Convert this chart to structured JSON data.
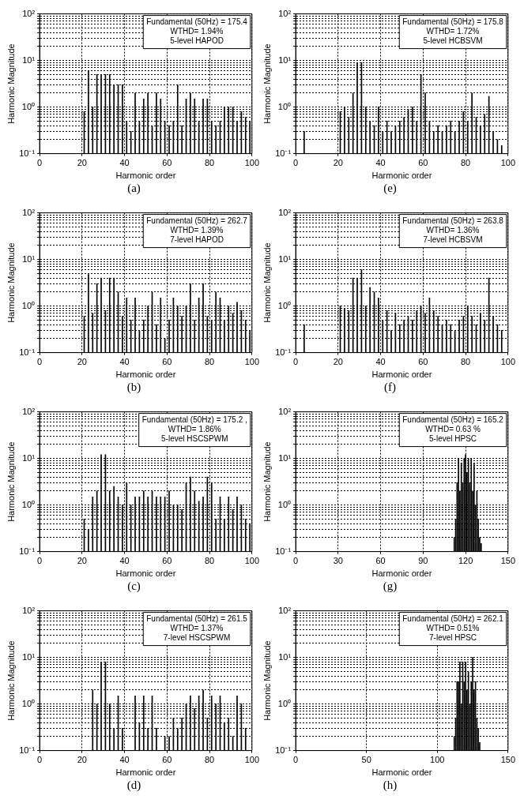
{
  "chart_data": [
    {
      "type": "bar",
      "title": "(a)",
      "xlabel": "Harmonic order",
      "ylabel": "Harmonic Magnitude",
      "annotations": [
        "Fundamental (50Hz) = 175.4",
        "WTHD= 1.94%",
        "5-level HAPOD"
      ],
      "color": "#000000",
      "log": "y",
      "grid": true,
      "xlim": [
        0,
        100
      ],
      "xticks": [
        0,
        20,
        40,
        60,
        80,
        100
      ],
      "ylim": [
        0.1,
        100
      ],
      "yticks": [
        {
          "value": 0.1,
          "label": "10⁻¹"
        },
        {
          "value": 0.2,
          "label": null
        },
        {
          "value": 0.3,
          "label": null
        },
        {
          "value": 0.4,
          "label": null
        },
        {
          "value": 0.5,
          "label": null
        },
        {
          "value": 0.6,
          "label": null
        },
        {
          "value": 0.7,
          "label": null
        },
        {
          "value": 0.8,
          "label": null
        },
        {
          "value": 0.9,
          "label": null
        },
        {
          "value": 1,
          "label": "10⁰"
        },
        {
          "value": 2,
          "label": null
        },
        {
          "value": 3,
          "label": null
        },
        {
          "value": 4,
          "label": null
        },
        {
          "value": 5,
          "label": null
        },
        {
          "value": 6,
          "label": null
        },
        {
          "value": 7,
          "label": null
        },
        {
          "value": 8,
          "label": null
        },
        {
          "value": 9,
          "label": null
        },
        {
          "value": 10,
          "label": "10¹"
        },
        {
          "value": 20,
          "label": null
        },
        {
          "value": 30,
          "label": null
        },
        {
          "value": 40,
          "label": null
        },
        {
          "value": 50,
          "label": null
        },
        {
          "value": 60,
          "label": null
        },
        {
          "value": 70,
          "label": null
        },
        {
          "value": 80,
          "label": null
        },
        {
          "value": 90,
          "label": null
        },
        {
          "value": 100,
          "label": "10²"
        }
      ],
      "x": [
        21,
        23,
        25,
        27,
        29,
        31,
        33,
        35,
        37,
        39,
        41,
        43,
        45,
        47,
        49,
        51,
        53,
        55,
        57,
        59,
        61,
        63,
        65,
        67,
        69,
        71,
        73,
        75,
        77,
        79,
        81,
        83,
        85,
        87,
        89,
        91,
        93,
        95,
        97,
        99
      ],
      "values": [
        0.8,
        6,
        1,
        5,
        5,
        5,
        5,
        3,
        3,
        3,
        0.5,
        0.3,
        2,
        0.5,
        1.5,
        2,
        0.4,
        2,
        1.5,
        0.5,
        0.4,
        0.5,
        3,
        0.4,
        1.5,
        2,
        1.5,
        0.5,
        1.5,
        1.5,
        0.5,
        0.4,
        0.5,
        1,
        1,
        1,
        0.5,
        0.8,
        0.6,
        0.5
      ]
    },
    {
      "type": "bar",
      "title": "(e)",
      "xlabel": "Harmonic order",
      "ylabel": "Harmonic Magnitude",
      "annotations": [
        "Fundamental (50Hz) = 175.8",
        "WTHD= 1.72%",
        "5-level HCBSVM"
      ],
      "color": "#000000",
      "log": "y",
      "grid": true,
      "xlim": [
        0,
        100
      ],
      "xticks": [
        0,
        20,
        40,
        60,
        80,
        100
      ],
      "ylim": [
        0.1,
        100
      ],
      "yticks": [
        {
          "value": 0.1,
          "label": "10⁻¹"
        },
        {
          "value": 0.2,
          "label": null
        },
        {
          "value": 0.3,
          "label": null
        },
        {
          "value": 0.4,
          "label": null
        },
        {
          "value": 0.5,
          "label": null
        },
        {
          "value": 0.6,
          "label": null
        },
        {
          "value": 0.7,
          "label": null
        },
        {
          "value": 0.8,
          "label": null
        },
        {
          "value": 0.9,
          "label": null
        },
        {
          "value": 1,
          "label": "10⁰"
        },
        {
          "value": 2,
          "label": null
        },
        {
          "value": 3,
          "label": null
        },
        {
          "value": 4,
          "label": null
        },
        {
          "value": 5,
          "label": null
        },
        {
          "value": 6,
          "label": null
        },
        {
          "value": 7,
          "label": null
        },
        {
          "value": 8,
          "label": null
        },
        {
          "value": 9,
          "label": null
        },
        {
          "value": 10,
          "label": "10¹"
        },
        {
          "value": 20,
          "label": null
        },
        {
          "value": 30,
          "label": null
        },
        {
          "value": 40,
          "label": null
        },
        {
          "value": 50,
          "label": null
        },
        {
          "value": 60,
          "label": null
        },
        {
          "value": 70,
          "label": null
        },
        {
          "value": 80,
          "label": null
        },
        {
          "value": 90,
          "label": null
        },
        {
          "value": 100,
          "label": "10²"
        }
      ],
      "x": [
        4,
        21,
        23,
        25,
        27,
        29,
        31,
        33,
        35,
        37,
        39,
        41,
        43,
        45,
        47,
        49,
        51,
        53,
        55,
        57,
        59,
        61,
        63,
        65,
        67,
        69,
        71,
        73,
        75,
        77,
        79,
        81,
        83,
        85,
        87,
        89,
        91,
        93,
        95,
        97
      ],
      "values": [
        0.3,
        0.8,
        1,
        0.6,
        2,
        9,
        9,
        1,
        0.5,
        0.4,
        1,
        0.3,
        0.5,
        0.3,
        0.4,
        0.5,
        0.6,
        0.9,
        1,
        0.5,
        5,
        2,
        0.5,
        0.3,
        0.4,
        0.3,
        0.4,
        0.5,
        0.3,
        0.5,
        0.8,
        0.5,
        2,
        0.6,
        0.4,
        0.7,
        1.7,
        0.3,
        0.2,
        0.15
      ]
    },
    {
      "type": "bar",
      "title": "(b)",
      "xlabel": "Harmonic order",
      "ylabel": "Harmonic Magnitude",
      "annotations": [
        "Fundamental (50Hz) = 262.7",
        "WTHD= 1.39%",
        "7-level HAPOD"
      ],
      "color": "#000000",
      "log": "y",
      "grid": true,
      "xlim": [
        0,
        100
      ],
      "xticks": [
        0,
        20,
        40,
        60,
        80,
        100
      ],
      "ylim": [
        0.1,
        100
      ],
      "yticks": [
        {
          "value": 0.1,
          "label": "10⁻¹"
        },
        {
          "value": 0.2,
          "label": null
        },
        {
          "value": 0.3,
          "label": null
        },
        {
          "value": 0.4,
          "label": null
        },
        {
          "value": 0.5,
          "label": null
        },
        {
          "value": 0.6,
          "label": null
        },
        {
          "value": 0.7,
          "label": null
        },
        {
          "value": 0.8,
          "label": null
        },
        {
          "value": 0.9,
          "label": null
        },
        {
          "value": 1,
          "label": "10⁰"
        },
        {
          "value": 2,
          "label": null
        },
        {
          "value": 3,
          "label": null
        },
        {
          "value": 4,
          "label": null
        },
        {
          "value": 5,
          "label": null
        },
        {
          "value": 6,
          "label": null
        },
        {
          "value": 7,
          "label": null
        },
        {
          "value": 8,
          "label": null
        },
        {
          "value": 9,
          "label": null
        },
        {
          "value": 10,
          "label": "10¹"
        },
        {
          "value": 20,
          "label": null
        },
        {
          "value": 30,
          "label": null
        },
        {
          "value": 40,
          "label": null
        },
        {
          "value": 50,
          "label": null
        },
        {
          "value": 60,
          "label": null
        },
        {
          "value": 70,
          "label": null
        },
        {
          "value": 80,
          "label": null
        },
        {
          "value": 90,
          "label": null
        },
        {
          "value": 100,
          "label": "10²"
        }
      ],
      "x": [
        21,
        23,
        25,
        27,
        29,
        31,
        33,
        35,
        37,
        39,
        41,
        43,
        45,
        47,
        49,
        51,
        53,
        55,
        57,
        59,
        61,
        63,
        65,
        67,
        69,
        71,
        73,
        75,
        77,
        79,
        81,
        83,
        85,
        87,
        89,
        91,
        93,
        95,
        97,
        99
      ],
      "values": [
        0.6,
        5,
        0.7,
        3,
        4,
        0.8,
        4,
        4,
        2,
        0.6,
        1.5,
        0.5,
        1.5,
        0.3,
        0.5,
        1,
        2,
        0.4,
        1.5,
        0.2,
        0.5,
        1.5,
        1,
        0.6,
        1,
        3,
        0.5,
        1.5,
        3,
        0.6,
        0.5,
        2,
        1.5,
        0.5,
        1,
        0.7,
        1.2,
        0.8,
        0.5,
        0.3
      ]
    },
    {
      "type": "bar",
      "title": "(f)",
      "xlabel": "Harmonic order",
      "ylabel": "Harmonic Magnitude",
      "annotations": [
        "Fundamental (50Hz) = 263.8",
        "WTHD= 1.36%",
        "7-level HCBSVM"
      ],
      "color": "#000000",
      "log": "y",
      "grid": true,
      "xlim": [
        0,
        100
      ],
      "xticks": [
        0,
        20,
        40,
        60,
        80,
        100
      ],
      "ylim": [
        0.1,
        100
      ],
      "yticks": [
        {
          "value": 0.1,
          "label": "10⁻¹"
        },
        {
          "value": 0.2,
          "label": null
        },
        {
          "value": 0.3,
          "label": null
        },
        {
          "value": 0.4,
          "label": null
        },
        {
          "value": 0.5,
          "label": null
        },
        {
          "value": 0.6,
          "label": null
        },
        {
          "value": 0.7,
          "label": null
        },
        {
          "value": 0.8,
          "label": null
        },
        {
          "value": 0.9,
          "label": null
        },
        {
          "value": 1,
          "label": "10⁰"
        },
        {
          "value": 2,
          "label": null
        },
        {
          "value": 3,
          "label": null
        },
        {
          "value": 4,
          "label": null
        },
        {
          "value": 5,
          "label": null
        },
        {
          "value": 6,
          "label": null
        },
        {
          "value": 7,
          "label": null
        },
        {
          "value": 8,
          "label": null
        },
        {
          "value": 9,
          "label": null
        },
        {
          "value": 10,
          "label": "10¹"
        },
        {
          "value": 20,
          "label": null
        },
        {
          "value": 30,
          "label": null
        },
        {
          "value": 40,
          "label": null
        },
        {
          "value": 50,
          "label": null
        },
        {
          "value": 60,
          "label": null
        },
        {
          "value": 70,
          "label": null
        },
        {
          "value": 80,
          "label": null
        },
        {
          "value": 90,
          "label": null
        },
        {
          "value": 100,
          "label": "10²"
        }
      ],
      "x": [
        4,
        21,
        23,
        25,
        27,
        29,
        31,
        33,
        35,
        37,
        39,
        41,
        43,
        45,
        47,
        49,
        51,
        53,
        55,
        57,
        59,
        61,
        63,
        65,
        67,
        69,
        71,
        73,
        75,
        77,
        79,
        81,
        83,
        85,
        87,
        89,
        91,
        93,
        95,
        97
      ],
      "values": [
        0.4,
        1,
        0.9,
        0.8,
        4,
        4,
        6,
        1,
        2.5,
        2,
        1.5,
        0.5,
        0.8,
        0.3,
        0.7,
        0.4,
        0.5,
        0.6,
        0.5,
        0.8,
        1,
        0.7,
        1.5,
        0.8,
        0.6,
        0.4,
        0.5,
        0.4,
        0.3,
        0.5,
        0.6,
        1,
        0.6,
        0.4,
        0.7,
        0.5,
        4,
        0.6,
        0.4,
        0.3
      ]
    },
    {
      "type": "bar",
      "title": "(c)",
      "xlabel": "Harmonic order",
      "ylabel": "Harmonic Magnitude",
      "annotations": [
        "Fundamental (50Hz) = 175.2 ,",
        "WTHD= 1.86%",
        "5-level HSCSPWM"
      ],
      "color": "#000000",
      "log": "y",
      "grid": true,
      "xlim": [
        0,
        100
      ],
      "xticks": [
        0,
        20,
        40,
        60,
        80,
        100
      ],
      "ylim": [
        0.1,
        100
      ],
      "yticks": [
        {
          "value": 0.1,
          "label": "10⁻¹"
        },
        {
          "value": 0.2,
          "label": null
        },
        {
          "value": 0.3,
          "label": null
        },
        {
          "value": 0.4,
          "label": null
        },
        {
          "value": 0.5,
          "label": null
        },
        {
          "value": 0.6,
          "label": null
        },
        {
          "value": 0.7,
          "label": null
        },
        {
          "value": 0.8,
          "label": null
        },
        {
          "value": 0.9,
          "label": null
        },
        {
          "value": 1,
          "label": "10⁰"
        },
        {
          "value": 2,
          "label": null
        },
        {
          "value": 3,
          "label": null
        },
        {
          "value": 4,
          "label": null
        },
        {
          "value": 5,
          "label": null
        },
        {
          "value": 6,
          "label": null
        },
        {
          "value": 7,
          "label": null
        },
        {
          "value": 8,
          "label": null
        },
        {
          "value": 9,
          "label": null
        },
        {
          "value": 10,
          "label": "10¹"
        },
        {
          "value": 20,
          "label": null
        },
        {
          "value": 30,
          "label": null
        },
        {
          "value": 40,
          "label": null
        },
        {
          "value": 50,
          "label": null
        },
        {
          "value": 60,
          "label": null
        },
        {
          "value": 70,
          "label": null
        },
        {
          "value": 80,
          "label": null
        },
        {
          "value": 90,
          "label": null
        },
        {
          "value": 100,
          "label": "10²"
        }
      ],
      "x": [
        21,
        23,
        25,
        27,
        29,
        31,
        33,
        35,
        37,
        39,
        41,
        43,
        45,
        47,
        49,
        51,
        53,
        55,
        57,
        59,
        61,
        63,
        65,
        67,
        69,
        71,
        73,
        75,
        77,
        79,
        81,
        83,
        85,
        87,
        89,
        91,
        93,
        95,
        97,
        99
      ],
      "values": [
        0.5,
        0.3,
        1.5,
        2,
        12,
        12,
        2,
        2.5,
        1.5,
        1,
        3,
        1,
        1.5,
        1.5,
        2,
        1.5,
        2,
        1.5,
        1.5,
        1.5,
        2,
        1,
        1,
        0.8,
        3,
        4,
        2,
        1.2,
        1.5,
        4,
        3,
        0.5,
        1.5,
        0.5,
        1.5,
        0.8,
        1.5,
        1,
        0.5,
        0.4
      ]
    },
    {
      "type": "bar",
      "title": "(g)",
      "xlabel": "Harmonic order",
      "ylabel": "Harmonic Magnitude",
      "annotations": [
        "Fundamental (50Hz) = 165.2",
        "WTHD= 0.63 %",
        "5-level HPSC"
      ],
      "color": "#000000",
      "log": "y",
      "grid": true,
      "xlim": [
        0,
        150
      ],
      "xticks": [
        0,
        30,
        60,
        90,
        120,
        150
      ],
      "ylim": [
        0.1,
        100
      ],
      "yticks": [
        {
          "value": 0.1,
          "label": "10⁻¹"
        },
        {
          "value": 0.2,
          "label": null
        },
        {
          "value": 0.3,
          "label": null
        },
        {
          "value": 0.4,
          "label": null
        },
        {
          "value": 0.5,
          "label": null
        },
        {
          "value": 0.6,
          "label": null
        },
        {
          "value": 0.7,
          "label": null
        },
        {
          "value": 0.8,
          "label": null
        },
        {
          "value": 0.9,
          "label": null
        },
        {
          "value": 1,
          "label": "10⁰"
        },
        {
          "value": 2,
          "label": null
        },
        {
          "value": 3,
          "label": null
        },
        {
          "value": 4,
          "label": null
        },
        {
          "value": 5,
          "label": null
        },
        {
          "value": 6,
          "label": null
        },
        {
          "value": 7,
          "label": null
        },
        {
          "value": 8,
          "label": null
        },
        {
          "value": 9,
          "label": null
        },
        {
          "value": 10,
          "label": "10¹"
        },
        {
          "value": 20,
          "label": null
        },
        {
          "value": 30,
          "label": null
        },
        {
          "value": 40,
          "label": null
        },
        {
          "value": 50,
          "label": null
        },
        {
          "value": 60,
          "label": null
        },
        {
          "value": 70,
          "label": null
        },
        {
          "value": 80,
          "label": null
        },
        {
          "value": 90,
          "label": null
        },
        {
          "value": 100,
          "label": "10²"
        }
      ],
      "x": [
        112,
        113,
        114,
        115,
        116,
        117,
        118,
        119,
        120,
        121,
        122,
        123,
        124,
        125,
        126,
        127,
        128,
        129,
        130,
        131
      ],
      "values": [
        0.2,
        0.5,
        3,
        10,
        2,
        8,
        3,
        10,
        12,
        5,
        10,
        3,
        10,
        2,
        8,
        1,
        2,
        0.5,
        0.2,
        0.15
      ]
    },
    {
      "type": "bar",
      "title": "(d)",
      "xlabel": "Harmonic order",
      "ylabel": "Harmonic Magnitude",
      "annotations": [
        "Fundamental (50Hz) = 261.5",
        "WTHD= 1.37%",
        "7-level HSCSPWM"
      ],
      "color": "#000000",
      "log": "y",
      "grid": true,
      "xlim": [
        0,
        100
      ],
      "xticks": [
        0,
        20,
        40,
        60,
        80,
        100
      ],
      "ylim": [
        0.1,
        100
      ],
      "yticks": [
        {
          "value": 0.1,
          "label": "10⁻¹"
        },
        {
          "value": 0.2,
          "label": null
        },
        {
          "value": 0.3,
          "label": null
        },
        {
          "value": 0.4,
          "label": null
        },
        {
          "value": 0.5,
          "label": null
        },
        {
          "value": 0.6,
          "label": null
        },
        {
          "value": 0.7,
          "label": null
        },
        {
          "value": 0.8,
          "label": null
        },
        {
          "value": 0.9,
          "label": null
        },
        {
          "value": 1,
          "label": "10⁰"
        },
        {
          "value": 2,
          "label": null
        },
        {
          "value": 3,
          "label": null
        },
        {
          "value": 4,
          "label": null
        },
        {
          "value": 5,
          "label": null
        },
        {
          "value": 6,
          "label": null
        },
        {
          "value": 7,
          "label": null
        },
        {
          "value": 8,
          "label": null
        },
        {
          "value": 9,
          "label": null
        },
        {
          "value": 10,
          "label": "10¹"
        },
        {
          "value": 20,
          "label": null
        },
        {
          "value": 30,
          "label": null
        },
        {
          "value": 40,
          "label": null
        },
        {
          "value": 50,
          "label": null
        },
        {
          "value": 60,
          "label": null
        },
        {
          "value": 70,
          "label": null
        },
        {
          "value": 80,
          "label": null
        },
        {
          "value": 90,
          "label": null
        },
        {
          "value": 100,
          "label": "10²"
        }
      ],
      "x": [
        25,
        27,
        29,
        31,
        33,
        35,
        37,
        39,
        45,
        47,
        49,
        51,
        53,
        55,
        59,
        61,
        63,
        65,
        67,
        69,
        71,
        73,
        75,
        77,
        79,
        81,
        83,
        85,
        87,
        89,
        91,
        93,
        95,
        97
      ],
      "values": [
        2,
        1,
        8,
        8,
        1,
        0.3,
        1.5,
        0.3,
        1.5,
        0.4,
        1.5,
        0.3,
        1.5,
        0.3,
        0.2,
        0.2,
        0.5,
        0.3,
        0.5,
        1,
        1.5,
        0.8,
        1.5,
        2,
        0.5,
        1.5,
        1,
        1.5,
        0.4,
        0.5,
        0.2,
        1.5,
        1,
        0.3
      ]
    },
    {
      "type": "bar",
      "title": "(h)",
      "xlabel": "Harmonic order",
      "ylabel": "Harmonic Magnitude",
      "annotations": [
        "Fundamental (50Hz) = 262.1",
        "WTHD= 0.51%",
        "7-level HPSC"
      ],
      "color": "#000000",
      "log": "y",
      "grid": true,
      "xlim": [
        0,
        150
      ],
      "xticks": [
        0,
        50,
        100,
        150
      ],
      "ylim": [
        0.1,
        100
      ],
      "yticks": [
        {
          "value": 0.1,
          "label": "10⁻¹"
        },
        {
          "value": 0.2,
          "label": null
        },
        {
          "value": 0.3,
          "label": null
        },
        {
          "value": 0.4,
          "label": null
        },
        {
          "value": 0.5,
          "label": null
        },
        {
          "value": 0.6,
          "label": null
        },
        {
          "value": 0.7,
          "label": null
        },
        {
          "value": 0.8,
          "label": null
        },
        {
          "value": 0.9,
          "label": null
        },
        {
          "value": 1,
          "label": "10⁰"
        },
        {
          "value": 2,
          "label": null
        },
        {
          "value": 3,
          "label": null
        },
        {
          "value": 4,
          "label": null
        },
        {
          "value": 5,
          "label": null
        },
        {
          "value": 6,
          "label": null
        },
        {
          "value": 7,
          "label": null
        },
        {
          "value": 8,
          "label": null
        },
        {
          "value": 9,
          "label": null
        },
        {
          "value": 10,
          "label": "10¹"
        },
        {
          "value": 20,
          "label": null
        },
        {
          "value": 30,
          "label": null
        },
        {
          "value": 40,
          "label": null
        },
        {
          "value": 50,
          "label": null
        },
        {
          "value": 60,
          "label": null
        },
        {
          "value": 70,
          "label": null
        },
        {
          "value": 80,
          "label": null
        },
        {
          "value": 90,
          "label": null
        },
        {
          "value": 100,
          "label": "10²"
        }
      ],
      "x": [
        112,
        113,
        114,
        115,
        116,
        117,
        118,
        119,
        120,
        121,
        122,
        123,
        124,
        125,
        126,
        127,
        128,
        129,
        130
      ],
      "values": [
        0.2,
        0.5,
        3,
        3,
        8,
        1,
        8,
        3,
        8,
        2,
        5,
        1,
        3,
        10,
        2,
        3,
        0.5,
        0.3,
        0.15
      ]
    }
  ]
}
